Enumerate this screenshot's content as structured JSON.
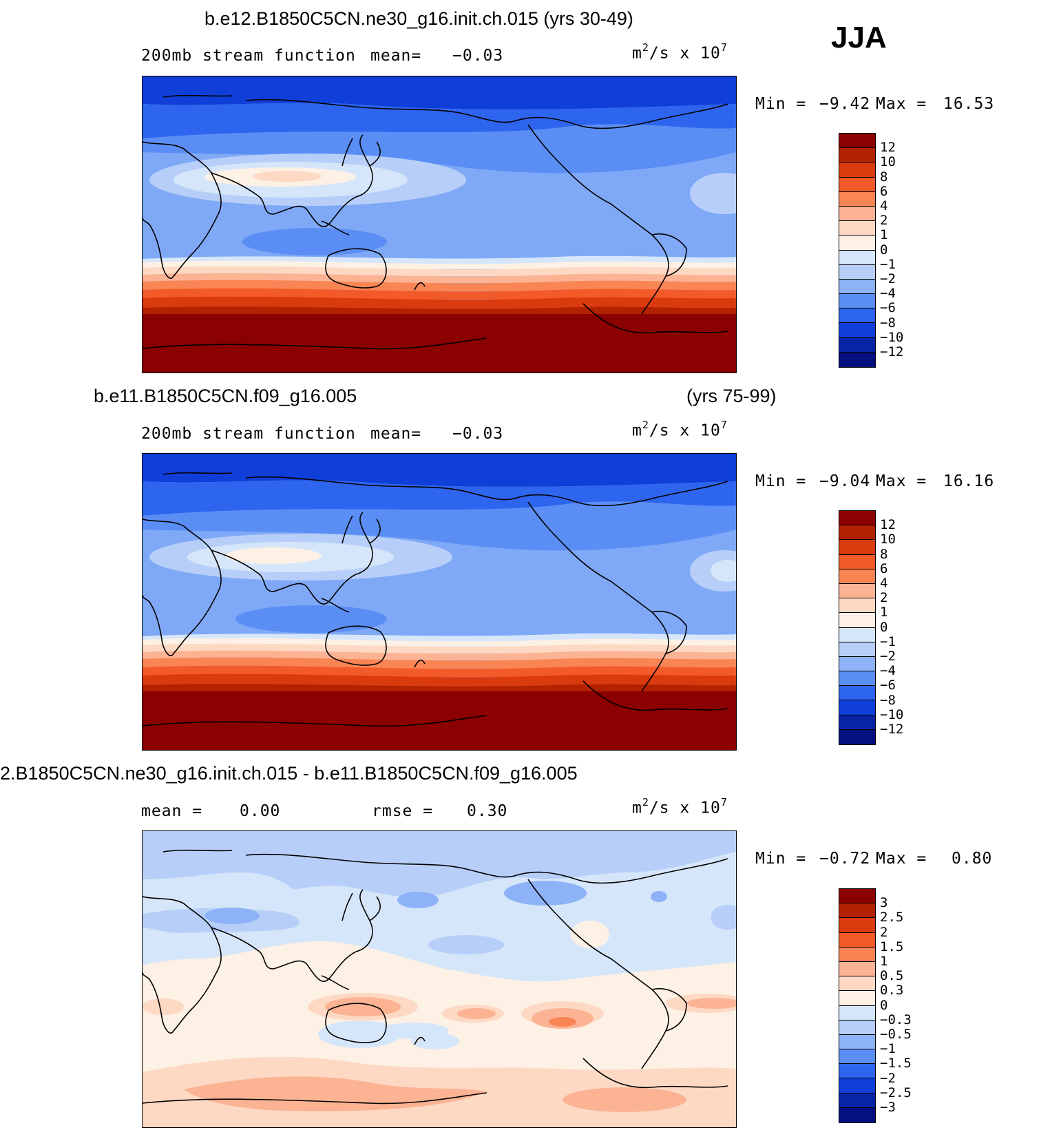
{
  "season": "JJA",
  "panels": [
    {
      "title": "b.e12.B1850C5CN.ne30_g16.init.ch.015 (yrs 30-49)",
      "years": "",
      "variable": "200mb stream function",
      "stat1_label": "mean=",
      "stat1_value": "−0.03",
      "stat2_label": "",
      "stat2_value": "",
      "units_base": "m",
      "units_exp1": "2",
      "units_mid": "/s x 10",
      "units_exp2": "7",
      "min_label": "Min =",
      "min_value": "−9.42",
      "max_label": "Max =",
      "max_value": "16.53",
      "levels": [
        "12",
        "10",
        "8",
        "6",
        "4",
        "2",
        "1",
        "0",
        "−1",
        "−2",
        "−4",
        "−6",
        "−8",
        "−10",
        "−12"
      ]
    },
    {
      "title": "b.e11.B1850C5CN.f09_g16.005",
      "years": "(yrs 75-99)",
      "variable": "200mb stream function",
      "stat1_label": "mean=",
      "stat1_value": "−0.03",
      "stat2_label": "",
      "stat2_value": "",
      "units_base": "m",
      "units_exp1": "2",
      "units_mid": "/s x 10",
      "units_exp2": "7",
      "min_label": "Min =",
      "min_value": "−9.04",
      "max_label": "Max =",
      "max_value": "16.16",
      "levels": [
        "12",
        "10",
        "8",
        "6",
        "4",
        "2",
        "1",
        "0",
        "−1",
        "−2",
        "−4",
        "−6",
        "−8",
        "−10",
        "−12"
      ]
    },
    {
      "title": "2.B1850C5CN.ne30_g16.init.ch.015 - b.e11.B1850C5CN.f09_g16.005",
      "years": "",
      "variable": "",
      "stat1_label": "mean =",
      "stat1_value": "0.00",
      "stat2_label": "rmse =",
      "stat2_value": "0.30",
      "units_base": "m",
      "units_exp1": "2",
      "units_mid": "/s x 10",
      "units_exp2": "7",
      "min_label": "Min =",
      "min_value": "−0.72",
      "max_label": "Max =",
      "max_value": "0.80",
      "levels": [
        "3",
        "2.5",
        "2",
        "1.5",
        "1",
        "0.5",
        "0.3",
        "0",
        "−0.3",
        "−0.5",
        "−1",
        "−1.5",
        "−2",
        "−2.5",
        "−3"
      ]
    }
  ],
  "palette": [
    "#8b0000",
    "#b22200",
    "#d93a0e",
    "#f35a2a",
    "#f98555",
    "#fbb394",
    "#fdd9c4",
    "#fdf0e4",
    "#d6e6fa",
    "#b7cff8",
    "#8db2f7",
    "#5b8ef5",
    "#2e65ee",
    "#0f3fd8",
    "#0a24a8",
    "#060f80"
  ],
  "chart_data": [
    {
      "type": "heatmap",
      "title": "b.e12.B1850C5CN.ne30_g16.init.ch.015 (yrs 30-49)",
      "subtitle": "200mb stream function  mean= −0.03",
      "season": "JJA",
      "units": "m2/s x 10^7",
      "mean": -0.03,
      "min": -9.42,
      "max": 16.53,
      "contour_levels": [
        -12,
        -10,
        -8,
        -6,
        -4,
        -2,
        -1,
        0,
        1,
        2,
        4,
        6,
        8,
        10,
        12
      ],
      "colorbar": "right"
    },
    {
      "type": "heatmap",
      "title": "b.e11.B1850C5CN.f09_g16.005 (yrs 75-99)",
      "subtitle": "200mb stream function  mean= −0.03",
      "season": "JJA",
      "units": "m2/s x 10^7",
      "mean": -0.03,
      "min": -9.04,
      "max": 16.16,
      "contour_levels": [
        -12,
        -10,
        -8,
        -6,
        -4,
        -2,
        -1,
        0,
        1,
        2,
        4,
        6,
        8,
        10,
        12
      ],
      "colorbar": "right"
    },
    {
      "type": "heatmap",
      "title": "2.B1850C5CN.ne30_g16.init.ch.015 - b.e11.B1850C5CN.f09_g16.005",
      "subtitle": "mean = 0.00  rmse = 0.30",
      "season": "JJA",
      "units": "m2/s x 10^7",
      "mean": 0.0,
      "rmse": 0.3,
      "min": -0.72,
      "max": 0.8,
      "contour_levels": [
        -3,
        -2.5,
        -2,
        -1.5,
        -1,
        -0.5,
        -0.3,
        0,
        0.3,
        0.5,
        1,
        1.5,
        2,
        2.5,
        3
      ],
      "colorbar": "right"
    }
  ]
}
